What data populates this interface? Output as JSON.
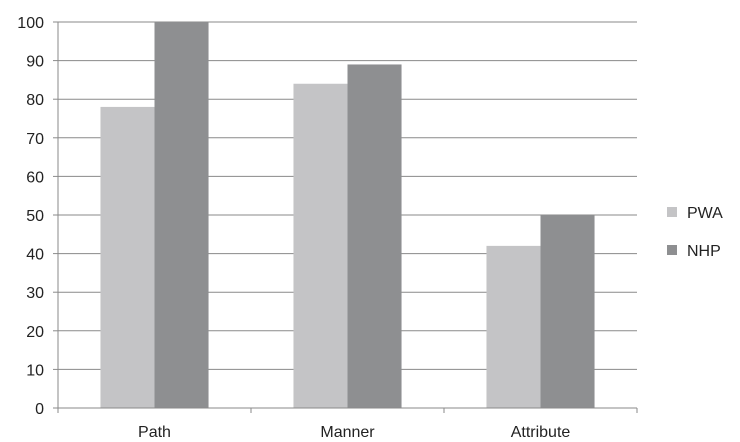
{
  "chart_data": {
    "type": "bar",
    "title": "",
    "xlabel": "",
    "ylabel": "",
    "categories": [
      "Path",
      "Manner",
      "Attribute"
    ],
    "series": [
      {
        "name": "PWA",
        "values": [
          78,
          84,
          42
        ],
        "color": "#c4c4c6"
      },
      {
        "name": "NHP",
        "values": [
          100,
          89,
          50
        ],
        "color": "#8e8f91"
      }
    ],
    "ylim": [
      0,
      100
    ],
    "yticks": [
      0,
      10,
      20,
      30,
      40,
      50,
      60,
      70,
      80,
      90,
      100
    ],
    "grid": true,
    "legend_position": "right"
  }
}
